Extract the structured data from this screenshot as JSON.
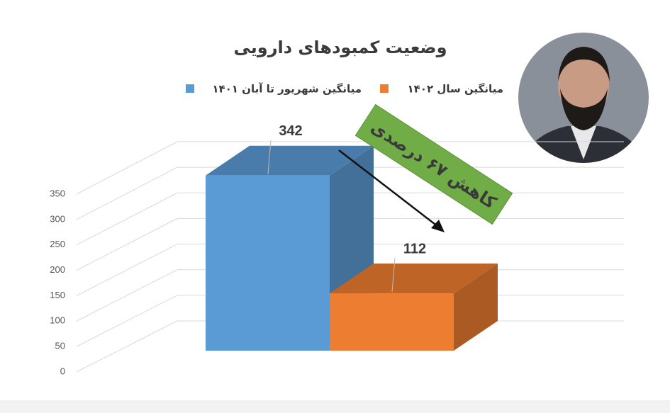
{
  "chart_data": {
    "type": "bar",
    "title": "وضعیت کمبودهای دارویی",
    "annotation": "کاهش ۶۷ درصدی",
    "categories": [
      null
    ],
    "series": [
      {
        "name": "میانگین شهریور تا آبان ۱۴۰۱",
        "color": "#5b9bd5",
        "values": [
          342
        ]
      },
      {
        "name": "میانگین سال ۱۴۰۲",
        "color": "#ed7d31",
        "values": [
          112
        ]
      }
    ],
    "ylim": [
      0,
      350
    ],
    "yticks": [
      0,
      50,
      100,
      150,
      200,
      250,
      300,
      350
    ],
    "grid": true,
    "legend": "top"
  }
}
